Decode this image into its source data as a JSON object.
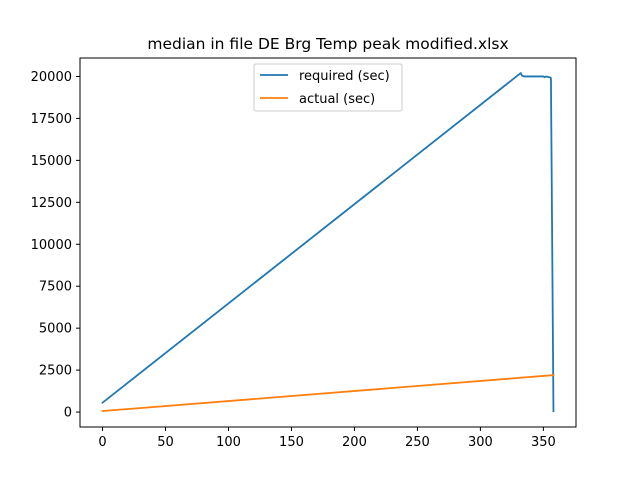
{
  "chart_data": {
    "type": "line",
    "title": "median in file DE Brg Temp peak modified.xlsx",
    "xlabel": "",
    "ylabel": "",
    "xlim": [
      -17.9,
      375.9
    ],
    "ylim": [
      -890,
      21100
    ],
    "xticks": [
      0,
      50,
      100,
      150,
      200,
      250,
      300,
      350
    ],
    "yticks": [
      0,
      2500,
      5000,
      7500,
      10000,
      12500,
      15000,
      17500,
      20000
    ],
    "grid": false,
    "legend_position": "upper center",
    "series": [
      {
        "name": "required (sec)",
        "color": "#1f77b4",
        "points": [
          [
            0,
            560
          ],
          [
            332,
            20200
          ],
          [
            333,
            20050
          ],
          [
            335,
            20000
          ],
          [
            340,
            20000
          ],
          [
            345,
            20000
          ],
          [
            350,
            20000
          ],
          [
            351,
            19950
          ],
          [
            352,
            20000
          ],
          [
            355,
            19950
          ],
          [
            356,
            19900
          ],
          [
            357,
            10000
          ],
          [
            358,
            50
          ]
        ]
      },
      {
        "name": "actual (sec)",
        "color": "#ff7f0e",
        "points": [
          [
            0,
            60
          ],
          [
            358,
            2200
          ]
        ]
      }
    ]
  }
}
